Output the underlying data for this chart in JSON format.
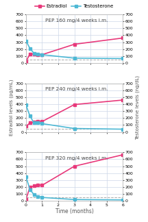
{
  "panels": [
    {
      "label": "PEP 160 mg/4 weeks i.m.",
      "estradiol_x": [
        0,
        0.25,
        0.5,
        0.75,
        1.0,
        3.0,
        6.0
      ],
      "estradiol_y": [
        20,
        130,
        130,
        120,
        120,
        270,
        360
      ],
      "testosterone_x": [
        0,
        0.25,
        0.5,
        0.75,
        1.0,
        3.0,
        6.0
      ],
      "testosterone_y": [
        320,
        210,
        140,
        130,
        120,
        70,
        65
      ]
    },
    {
      "label": "PEP 240 mg/4 weeks i.m.",
      "estradiol_x": [
        0,
        0.25,
        0.5,
        0.75,
        1.0,
        3.0,
        6.0
      ],
      "estradiol_y": [
        80,
        130,
        140,
        150,
        150,
        395,
        460
      ],
      "testosterone_x": [
        0,
        0.25,
        0.5,
        0.75,
        1.0,
        3.0,
        6.0
      ],
      "testosterone_y": [
        390,
        230,
        130,
        130,
        120,
        50,
        40
      ]
    },
    {
      "label": "PEP 320 mg/4 weeks i.m.",
      "estradiol_x": [
        0,
        0.25,
        0.5,
        0.75,
        1.0,
        3.0,
        6.0
      ],
      "estradiol_y": [
        20,
        200,
        215,
        230,
        225,
        500,
        665
      ],
      "testosterone_x": [
        0,
        0.25,
        0.5,
        0.75,
        1.0,
        3.0,
        6.0
      ],
      "testosterone_y": [
        350,
        165,
        90,
        65,
        50,
        20,
        15
      ]
    }
  ],
  "estradiol_color": "#e8387a",
  "testosterone_color": "#4db8d4",
  "ylim": [
    0,
    700
  ],
  "yticks": [
    0,
    100,
    200,
    300,
    400,
    500,
    600,
    700
  ],
  "xlim": [
    0,
    6
  ],
  "xticks": [
    0,
    1,
    2,
    3,
    4,
    5,
    6
  ],
  "xlabel": "Time (months)",
  "ylabel_left": "Estradiol levels (pg/mL)",
  "ylabel_right": "Testosterone levels (ng/dL)",
  "dashed_line_y": 50,
  "legend_estradiol": "Estradiol",
  "legend_testosterone": "Testosterone",
  "bg_color": "#ffffff",
  "grid_color": "#ccd6e8",
  "marker_size": 3,
  "line_width": 1.2,
  "tick_fontsize": 4.5,
  "label_fontsize": 5.0,
  "panel_label_fontsize": 5.2,
  "legend_fontsize": 5.0
}
